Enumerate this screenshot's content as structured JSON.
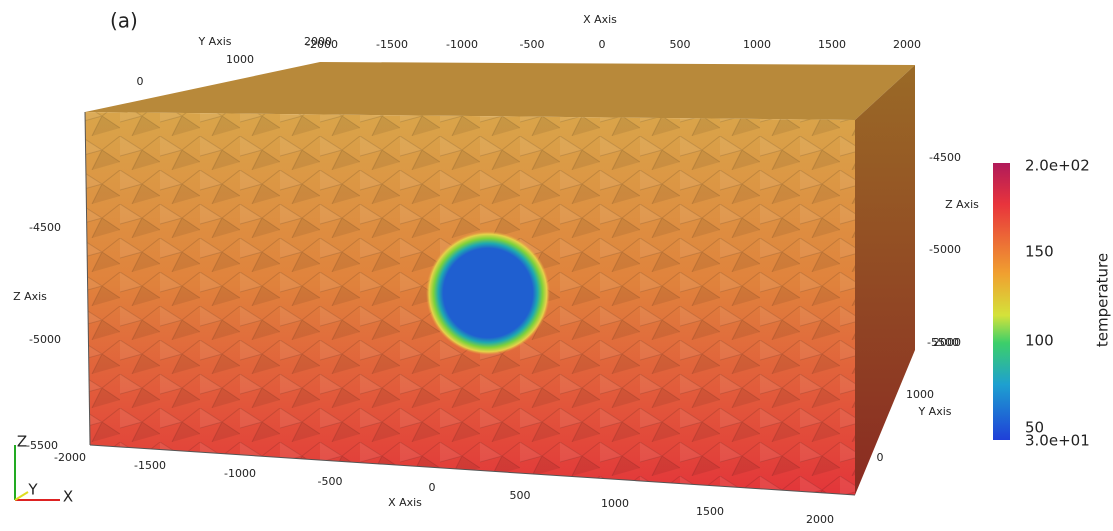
{
  "panel_label": "(a)",
  "top_x_axis": {
    "title": "X Axis",
    "ticks": [
      "-2000",
      "-1500",
      "-1000",
      "-500",
      "0",
      "500",
      "1000",
      "1500",
      "2000"
    ]
  },
  "top_y_axis": {
    "title": "Y Axis",
    "ticks": [
      "2000",
      "1000",
      "0"
    ]
  },
  "left_z_axis": {
    "title": "Z Axis",
    "ticks": [
      "-4500",
      "-5000",
      "-5500"
    ]
  },
  "right_z_axis": {
    "title": "Z Axis",
    "ticks": [
      "-4500",
      "-5000",
      "-5500"
    ]
  },
  "right_y_axis": {
    "title": "Y Axis",
    "ticks": [
      "2000",
      "1000",
      "0"
    ]
  },
  "bottom_x_axis": {
    "title": "X Axis",
    "ticks": [
      "-2000",
      "-1500",
      "-1000",
      "-500",
      "0",
      "500",
      "1000",
      "1500",
      "2000"
    ]
  },
  "colorbar": {
    "title": "temperature",
    "ticks": [
      "2.0e+02",
      "150",
      "100",
      "50",
      "3.0e+01"
    ]
  },
  "orientation_axes": [
    "Z",
    "Y",
    "X"
  ]
}
